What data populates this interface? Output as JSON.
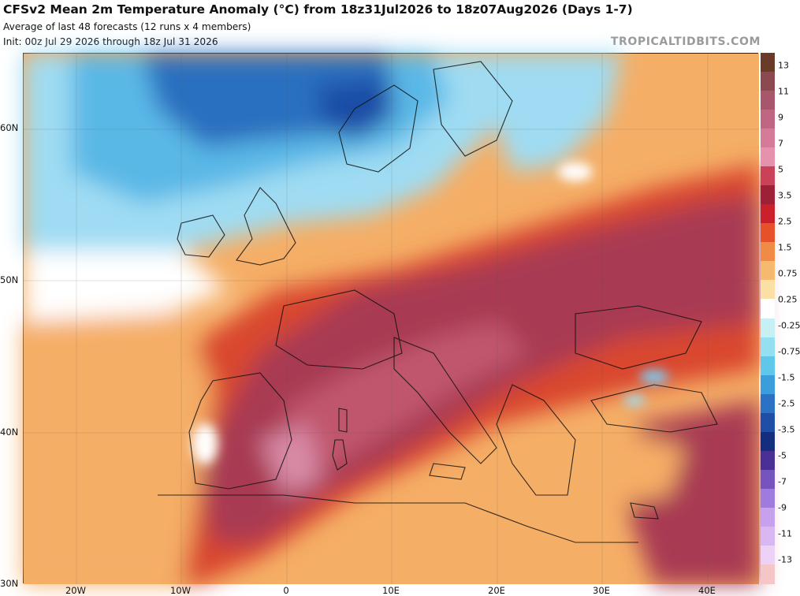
{
  "header": {
    "title": "CFSv2 Mean 2m Temperature Anomaly (°C) from 18z31Jul2026 to 18z07Aug2026 (Days 1-7)",
    "subtitle1": "Average of last 48 forecasts (12 runs x 4 members)",
    "subtitle2": "Init: 00z Jul 29 2026 through 18z Jul 31 2026",
    "brand": "TROPICALTIDBITS.COM"
  },
  "axes": {
    "lat_labels": [
      "60N",
      "50N",
      "40N",
      "30N"
    ],
    "lon_labels": [
      "20W",
      "10W",
      "0",
      "10E",
      "20E",
      "30E",
      "40E"
    ]
  },
  "colorbar": {
    "colors": [
      "#6b3b2a",
      "#8c4a50",
      "#a8566b",
      "#c06682",
      "#d57b99",
      "#e592ad",
      "#c94257",
      "#9e2036",
      "#c9202b",
      "#e6512a",
      "#f08b46",
      "#f5ba6d",
      "#fbe0a5",
      "#ffffff",
      "#c7f0f5",
      "#94dff0",
      "#5fc7ea",
      "#3a9edc",
      "#2b72c4",
      "#1f4ea6",
      "#132e7e",
      "#4a2f94",
      "#7654bf",
      "#9f7be0",
      "#c7a1ee",
      "#d8b7f2",
      "#ecd2f7",
      "#f5c6c6"
    ],
    "labels": [
      "13",
      "11",
      "9",
      "7",
      "5",
      "3.5",
      "2.5",
      "1.5",
      "0.75",
      "0.25",
      "-0.25",
      "-0.75",
      "-1.5",
      "-2.5",
      "-3.5",
      "-5",
      "-7",
      "-9",
      "-11",
      "-13"
    ]
  },
  "legend_colors": {
    "cold": "#2b6fc0",
    "cool": "#9fdcf3",
    "neutral": "#ffffff",
    "warm": "#f5ae66",
    "hot": "#d9472e",
    "very_hot": "#a83a52"
  }
}
